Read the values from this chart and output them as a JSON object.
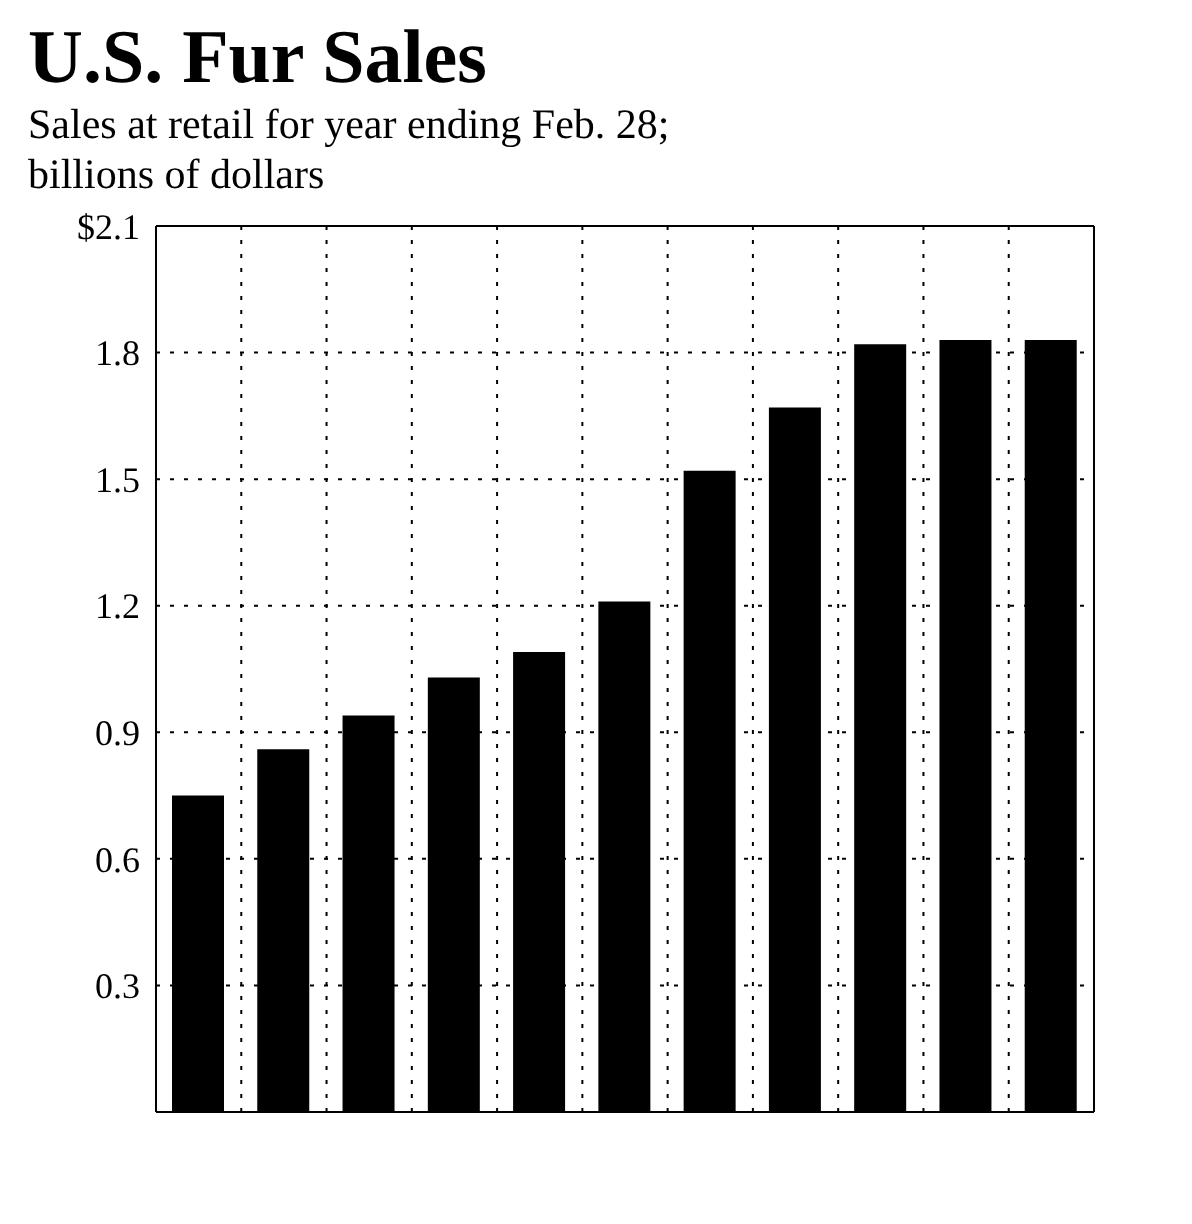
{
  "chart_data": {
    "type": "bar",
    "title": "U.S. Fur Sales",
    "subtitle": "Sales at retail for year ending Feb. 28; billions of dollars",
    "categories": [
      null,
      null,
      null,
      null,
      null,
      null,
      null,
      null,
      null,
      null,
      null
    ],
    "values": [
      0.75,
      0.86,
      0.94,
      1.03,
      1.09,
      1.21,
      1.52,
      1.67,
      1.82,
      1.83,
      1.83
    ],
    "color": "#000000",
    "ylim": [
      0,
      2.1
    ],
    "yticks": [
      {
        "value": 0,
        "label": null
      },
      0.3,
      0.6,
      0.9,
      1.2,
      1.5,
      1.8,
      {
        "value": 2.1,
        "label": "$2.1"
      }
    ],
    "grid": true,
    "tick_labels": "y"
  }
}
